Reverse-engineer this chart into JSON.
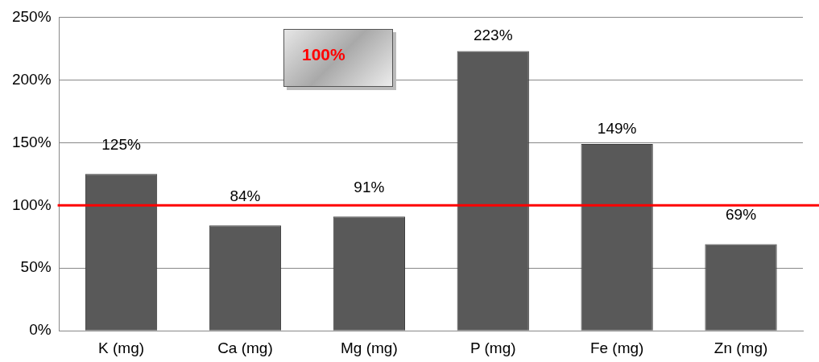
{
  "chart_data": {
    "type": "bar",
    "categories": [
      "K (mg)",
      "Ca (mg)",
      "Mg (mg)",
      "P (mg)",
      "Fe (mg)",
      "Zn (mg)"
    ],
    "values": [
      125,
      84,
      91,
      223,
      149,
      69
    ],
    "value_labels": [
      "125%",
      "84%",
      "91%",
      "223%",
      "149%",
      "69%"
    ],
    "color": "#595959",
    "ylim": [
      0,
      250
    ],
    "yticks": [
      {
        "value": 0,
        "label": "0%"
      },
      {
        "value": 50,
        "label": "50%"
      },
      {
        "value": 100,
        "label": "100%"
      },
      {
        "value": 150,
        "label": "150%"
      },
      {
        "value": 200,
        "label": "200%"
      },
      {
        "value": 250,
        "label": "250%"
      }
    ],
    "ref_lines": [
      {
        "axis": "y",
        "value": 100,
        "label": "100%",
        "color": "#ff0000"
      }
    ],
    "grid": "y",
    "legend": false
  }
}
